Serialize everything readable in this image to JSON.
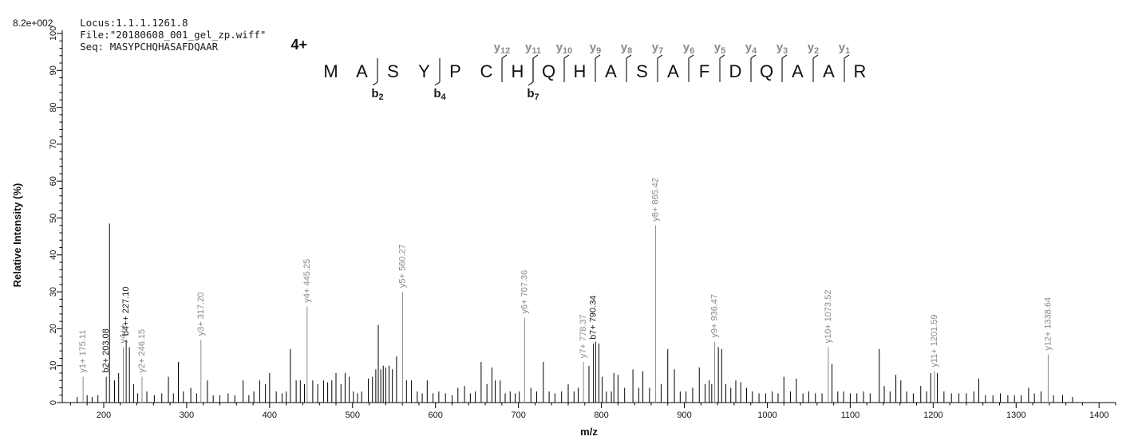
{
  "header": {
    "locus": "Locus:1.1.1.1261.8",
    "file": "File:\"20180608_001_gel_zp.wiff\"",
    "seq": "Seq: MASYPCHQHASAFDQAAR"
  },
  "peptide": {
    "charge_label": "4+",
    "residues": [
      "M",
      "A",
      "S",
      "Y",
      "P",
      "C",
      "H",
      "Q",
      "H",
      "A",
      "S",
      "A",
      "F",
      "D",
      "Q",
      "A",
      "A",
      "R"
    ],
    "y_ions": [
      {
        "label": "y12",
        "after_residue": 6
      },
      {
        "label": "y11",
        "after_residue": 7
      },
      {
        "label": "y10",
        "after_residue": 8
      },
      {
        "label": "y9",
        "after_residue": 9
      },
      {
        "label": "y8",
        "after_residue": 10
      },
      {
        "label": "y7",
        "after_residue": 11
      },
      {
        "label": "y6",
        "after_residue": 12
      },
      {
        "label": "y5",
        "after_residue": 13
      },
      {
        "label": "y4",
        "after_residue": 14
      },
      {
        "label": "y3",
        "after_residue": 15
      },
      {
        "label": "y2",
        "after_residue": 16
      },
      {
        "label": "y1",
        "after_residue": 17
      }
    ],
    "b_ions": [
      {
        "label": "b2",
        "after_residue": 2
      },
      {
        "label": "b4",
        "after_residue": 4
      },
      {
        "label": "b7",
        "after_residue": 7
      }
    ]
  },
  "chart_data": {
    "type": "bar",
    "variant": "ms2-fragment-spectrum",
    "title": "",
    "xlabel": "m/z",
    "ylabel": "Relative  Intensity (%)",
    "base_intensity_label": "8.2e+002",
    "xlim": [
      150,
      1420
    ],
    "ylim": [
      0,
      100
    ],
    "x_ticks": [
      200,
      300,
      400,
      500,
      600,
      700,
      800,
      900,
      1000,
      1100,
      1200,
      1300,
      1400
    ],
    "y_ticks": [
      0,
      10,
      20,
      30,
      40,
      50,
      60,
      70,
      80,
      90,
      100
    ],
    "grid": false,
    "legend": false,
    "label_color_y_ion": "#8a8a8a",
    "label_color_b_ion": "#1a1a1a",
    "unlabeled_color": "#000000",
    "labeled_peaks": [
      {
        "label": "y1+ 175.11",
        "mz": 175.11,
        "intensity": 7,
        "color": "#8a8a8a"
      },
      {
        "label": "b2+ 203.08",
        "mz": 203.08,
        "intensity": 7,
        "color": "#1a1a1a"
      },
      {
        "label": "y4++",
        "mz": 223.6,
        "intensity": 15,
        "color": "#8a8a8a"
      },
      {
        "label": "b4++ 227.10",
        "mz": 227.1,
        "intensity": 17,
        "color": "#1a1a1a"
      },
      {
        "label": "y2+ 246.15",
        "mz": 246.15,
        "intensity": 7,
        "color": "#8a8a8a"
      },
      {
        "label": "y3+ 317.20",
        "mz": 317.2,
        "intensity": 17,
        "color": "#8a8a8a"
      },
      {
        "label": "y4+ 445.25",
        "mz": 445.25,
        "intensity": 26,
        "color": "#8a8a8a"
      },
      {
        "label": "y5+ 560.27",
        "mz": 560.27,
        "intensity": 30,
        "color": "#8a8a8a"
      },
      {
        "label": "y6+ 707.36",
        "mz": 707.36,
        "intensity": 23,
        "color": "#8a8a8a"
      },
      {
        "label": "y7+ 778.37",
        "mz": 778.37,
        "intensity": 11,
        "color": "#8a8a8a"
      },
      {
        "label": "b7+ 790.34",
        "mz": 790.34,
        "intensity": 16,
        "color": "#1a1a1a"
      },
      {
        "label": "y8+ 865.42",
        "mz": 865.42,
        "intensity": 48,
        "color": "#8a8a8a"
      },
      {
        "label": "y9+ 936.47",
        "mz": 936.47,
        "intensity": 16.5,
        "color": "#8a8a8a"
      },
      {
        "label": "y10+ 1073.52",
        "mz": 1073.52,
        "intensity": 15,
        "color": "#8a8a8a"
      },
      {
        "label": "y11+ 1201.59",
        "mz": 1201.59,
        "intensity": 8.5,
        "color": "#8a8a8a"
      },
      {
        "label": "y12+ 1338.64",
        "mz": 1338.64,
        "intensity": 13,
        "color": "#8a8a8a"
      }
    ],
    "unlabeled_peaks": [
      [
        168,
        1.5
      ],
      [
        180,
        2
      ],
      [
        186,
        1.5
      ],
      [
        193,
        2
      ],
      [
        207,
        48.5
      ],
      [
        213,
        6
      ],
      [
        218,
        8
      ],
      [
        231,
        15
      ],
      [
        236,
        5
      ],
      [
        241,
        2.5
      ],
      [
        252,
        3
      ],
      [
        261,
        2
      ],
      [
        270,
        2.5
      ],
      [
        278,
        7
      ],
      [
        284,
        2.5
      ],
      [
        290,
        11
      ],
      [
        296,
        3
      ],
      [
        305,
        4
      ],
      [
        312,
        2.5
      ],
      [
        325,
        6
      ],
      [
        332,
        2
      ],
      [
        340,
        2
      ],
      [
        350,
        2.5
      ],
      [
        358,
        2
      ],
      [
        368,
        6
      ],
      [
        375,
        2
      ],
      [
        381,
        3
      ],
      [
        388,
        6
      ],
      [
        395,
        5
      ],
      [
        400,
        8
      ],
      [
        408,
        3
      ],
      [
        415,
        2.5
      ],
      [
        420,
        3
      ],
      [
        425,
        14.5
      ],
      [
        432,
        6
      ],
      [
        437,
        6
      ],
      [
        442,
        5
      ],
      [
        452,
        6
      ],
      [
        458,
        5
      ],
      [
        465,
        6
      ],
      [
        470,
        5.5
      ],
      [
        475,
        6
      ],
      [
        480,
        8
      ],
      [
        486,
        5
      ],
      [
        491,
        8
      ],
      [
        496,
        7
      ],
      [
        501,
        3
      ],
      [
        506,
        2.5
      ],
      [
        511,
        3
      ],
      [
        519,
        6.5
      ],
      [
        524,
        7
      ],
      [
        528,
        9
      ],
      [
        531,
        21
      ],
      [
        534,
        9
      ],
      [
        537,
        10
      ],
      [
        540,
        9.5
      ],
      [
        544,
        10
      ],
      [
        548,
        9
      ],
      [
        553,
        12.5
      ],
      [
        565,
        6
      ],
      [
        571,
        6
      ],
      [
        578,
        3
      ],
      [
        584,
        2.5
      ],
      [
        590,
        6
      ],
      [
        597,
        2.5
      ],
      [
        604,
        3
      ],
      [
        612,
        2.5
      ],
      [
        620,
        2
      ],
      [
        627,
        4
      ],
      [
        635,
        4.5
      ],
      [
        642,
        2.5
      ],
      [
        648,
        3
      ],
      [
        655,
        11
      ],
      [
        662,
        5
      ],
      [
        668,
        9.5
      ],
      [
        672,
        6
      ],
      [
        678,
        6
      ],
      [
        684,
        2.5
      ],
      [
        690,
        3
      ],
      [
        696,
        2.5
      ],
      [
        701,
        3
      ],
      [
        715,
        4
      ],
      [
        722,
        3
      ],
      [
        730,
        11
      ],
      [
        737,
        3
      ],
      [
        744,
        2.5
      ],
      [
        752,
        3
      ],
      [
        760,
        5
      ],
      [
        767,
        3
      ],
      [
        772,
        4
      ],
      [
        785,
        10
      ],
      [
        793,
        16.5
      ],
      [
        797,
        16
      ],
      [
        801,
        7
      ],
      [
        806,
        3
      ],
      [
        812,
        3
      ],
      [
        815,
        8
      ],
      [
        820,
        7.5
      ],
      [
        828,
        4
      ],
      [
        838,
        9
      ],
      [
        845,
        4
      ],
      [
        850,
        8.5
      ],
      [
        858,
        4
      ],
      [
        872,
        5
      ],
      [
        880,
        14.5
      ],
      [
        888,
        9
      ],
      [
        895,
        3
      ],
      [
        902,
        3
      ],
      [
        910,
        4
      ],
      [
        918,
        9.5
      ],
      [
        925,
        5
      ],
      [
        930,
        6
      ],
      [
        933,
        5
      ],
      [
        941,
        15
      ],
      [
        945,
        14.5
      ],
      [
        950,
        5
      ],
      [
        956,
        4
      ],
      [
        962,
        6
      ],
      [
        968,
        5.5
      ],
      [
        975,
        4
      ],
      [
        982,
        3
      ],
      [
        990,
        2.5
      ],
      [
        998,
        2.5
      ],
      [
        1006,
        3
      ],
      [
        1013,
        2.5
      ],
      [
        1020,
        7
      ],
      [
        1028,
        3
      ],
      [
        1035,
        6.5
      ],
      [
        1043,
        2.5
      ],
      [
        1050,
        3
      ],
      [
        1058,
        2.5
      ],
      [
        1066,
        2.5
      ],
      [
        1078,
        10.5
      ],
      [
        1085,
        3
      ],
      [
        1092,
        3
      ],
      [
        1100,
        2.5
      ],
      [
        1108,
        2.5
      ],
      [
        1116,
        3
      ],
      [
        1124,
        2.5
      ],
      [
        1135,
        14.5
      ],
      [
        1141,
        4.5
      ],
      [
        1148,
        3
      ],
      [
        1155,
        7.5
      ],
      [
        1161,
        6
      ],
      [
        1168,
        3
      ],
      [
        1176,
        2.5
      ],
      [
        1185,
        4.5
      ],
      [
        1192,
        3
      ],
      [
        1197,
        8
      ],
      [
        1205,
        8
      ],
      [
        1213,
        3
      ],
      [
        1222,
        2.5
      ],
      [
        1231,
        2.5
      ],
      [
        1240,
        2.5
      ],
      [
        1249,
        3
      ],
      [
        1255,
        6.5
      ],
      [
        1263,
        2
      ],
      [
        1272,
        2
      ],
      [
        1281,
        2.5
      ],
      [
        1290,
        2
      ],
      [
        1298,
        2
      ],
      [
        1306,
        2
      ],
      [
        1315,
        4
      ],
      [
        1322,
        2.5
      ],
      [
        1330,
        3
      ],
      [
        1345,
        2
      ],
      [
        1356,
        2
      ],
      [
        1368,
        1.5
      ]
    ]
  }
}
